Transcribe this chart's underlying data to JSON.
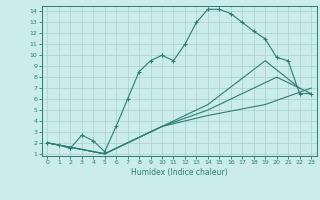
{
  "xlabel": "Humidex (Indice chaleur)",
  "bg_color": "#caecea",
  "line_color": "#2e7d72",
  "grid_color": "#aacfcc",
  "xlim": [
    -0.5,
    23.5
  ],
  "ylim": [
    0.8,
    14.5
  ],
  "xticks": [
    0,
    1,
    2,
    3,
    4,
    5,
    6,
    7,
    8,
    9,
    10,
    11,
    12,
    13,
    14,
    15,
    16,
    17,
    18,
    19,
    20,
    21,
    22,
    23
  ],
  "yticks": [
    1,
    2,
    3,
    4,
    5,
    6,
    7,
    8,
    9,
    10,
    11,
    12,
    13,
    14
  ],
  "curve1_x": [
    0,
    1,
    2,
    3,
    4,
    5,
    6,
    7,
    8,
    9,
    10,
    11,
    12,
    13,
    14,
    15,
    16,
    17,
    18,
    19,
    20,
    21,
    22,
    23
  ],
  "curve1_y": [
    2,
    1.8,
    1.5,
    2.7,
    2.2,
    1.2,
    3.5,
    6.0,
    8.5,
    9.5,
    10.0,
    9.5,
    11.0,
    13.0,
    14.2,
    14.2,
    13.8,
    13.0,
    12.2,
    11.5,
    9.8,
    9.5,
    6.5,
    6.5
  ],
  "curve2_x": [
    0,
    5,
    10,
    14,
    19,
    23
  ],
  "curve2_y": [
    2,
    1,
    3.5,
    4.5,
    5.5,
    7.0
  ],
  "curve3_x": [
    0,
    5,
    10,
    14,
    19,
    22
  ],
  "curve3_y": [
    2,
    1,
    3.5,
    5.5,
    9.5,
    7.0
  ],
  "curve4_x": [
    0,
    5,
    10,
    14,
    20,
    23
  ],
  "curve4_y": [
    2,
    1,
    3.5,
    5.0,
    8.0,
    6.5
  ]
}
